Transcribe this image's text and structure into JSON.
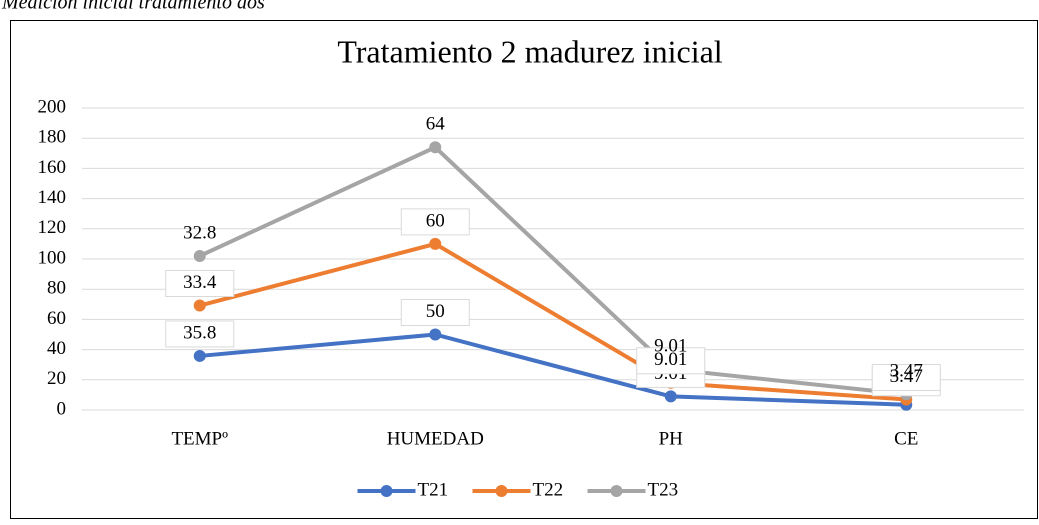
{
  "caption": "Medición inicial tratamiento dos",
  "chart_data": {
    "type": "line",
    "stacked": true,
    "title": "Tratamiento 2 madurez inicial",
    "categories": [
      "TEMPº",
      "HUMEDAD",
      "PH",
      "CE"
    ],
    "series": [
      {
        "name": "T21",
        "color": "#4472c4",
        "values": [
          35.8,
          50,
          9.01,
          3.47
        ]
      },
      {
        "name": "T22",
        "color": "#ed7d31",
        "values": [
          33.4,
          60,
          9.01,
          3.47
        ]
      },
      {
        "name": "T23",
        "color": "#a5a5a5",
        "values": [
          32.8,
          64,
          9.01,
          3.47
        ]
      }
    ],
    "ylim": [
      0,
      200
    ],
    "yticks": [
      0,
      20,
      40,
      60,
      80,
      100,
      120,
      140,
      160,
      180,
      200
    ],
    "grid": true,
    "legend": "bottom"
  }
}
